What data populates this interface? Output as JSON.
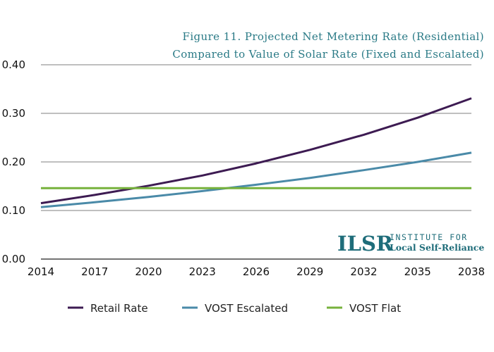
{
  "chart_data": {
    "type": "line",
    "title_line1": "Figure 11.  Projected Net Metering Rate (Residential)",
    "title_line2": "Compared to Value of Solar Rate (Fixed and Escalated)",
    "xlabel": "",
    "ylabel": "",
    "x_ticks": [
      "2014",
      "2017",
      "2020",
      "2023",
      "2026",
      "2029",
      "2032",
      "2035",
      "2038"
    ],
    "y_ticks": [
      "0.00",
      "0.10",
      "0.20",
      "0.30",
      "0.40"
    ],
    "xlim": [
      2014,
      2038
    ],
    "ylim": [
      0,
      0.4
    ],
    "grid": "horizontal",
    "x": [
      2014,
      2017,
      2020,
      2023,
      2026,
      2029,
      2032,
      2035,
      2038
    ],
    "series": [
      {
        "name": "Retail Rate",
        "color": "#3d1b52",
        "values": [
          0.115,
          0.132,
          0.151,
          0.172,
          0.197,
          0.225,
          0.256,
          0.291,
          0.331
        ]
      },
      {
        "name": "VOST Escalated",
        "color": "#4a8aa8",
        "values": [
          0.107,
          0.117,
          0.128,
          0.14,
          0.153,
          0.167,
          0.183,
          0.2,
          0.219
        ]
      },
      {
        "name": "VOST Flat",
        "color": "#77b23c",
        "values": [
          0.146,
          0.146,
          0.146,
          0.146,
          0.146,
          0.146,
          0.146,
          0.146,
          0.146
        ]
      }
    ],
    "legend_position": "bottom"
  },
  "logo": {
    "mark": "ILSR",
    "line1": "INSTITUTE FOR",
    "line2": "Local Self-Reliance",
    "color": "#1f6d7a"
  }
}
